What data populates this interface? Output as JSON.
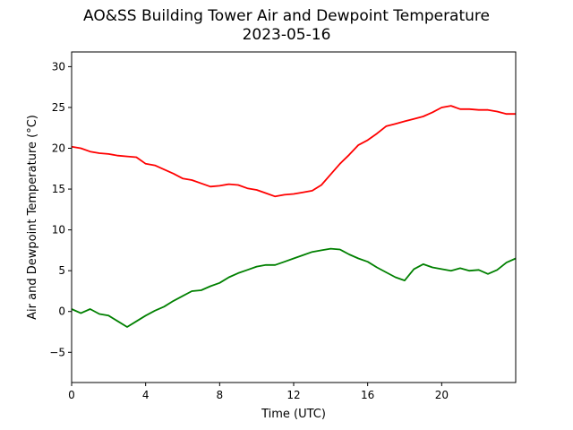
{
  "chart_data": {
    "type": "line",
    "title": "AO&SS Building Tower Air and Dewpoint Temperature",
    "subtitle": "2023-05-16",
    "xlabel": "Time (UTC)",
    "ylabel": "Air and Dewpoint Temperature (°C)",
    "xlim": [
      0,
      24
    ],
    "ylim": [
      -8.7,
      31.8
    ],
    "x_ticks": [
      0,
      4,
      8,
      12,
      16,
      20
    ],
    "y_ticks": [
      -5,
      0,
      5,
      10,
      15,
      20,
      25,
      30
    ],
    "grid": false,
    "legend": "none",
    "series": [
      {
        "color": "#ff0000",
        "x": [
          0,
          0.5,
          1,
          1.5,
          2,
          2.5,
          3,
          3.5,
          4,
          4.5,
          5,
          5.5,
          6,
          6.5,
          7,
          7.5,
          8,
          8.5,
          9,
          9.5,
          10,
          10.5,
          11,
          11.5,
          12,
          12.5,
          13,
          13.5,
          14,
          14.5,
          15,
          15.5,
          16,
          16.5,
          17,
          17.5,
          18,
          18.5,
          19,
          19.5,
          20,
          20.5,
          21,
          21.5,
          22,
          22.5,
          23,
          23.5,
          24
        ],
        "y": [
          20.2,
          20.0,
          19.6,
          19.4,
          19.3,
          19.1,
          19.0,
          18.9,
          18.1,
          17.9,
          17.4,
          16.9,
          16.3,
          16.1,
          15.7,
          15.3,
          15.4,
          15.6,
          15.5,
          15.1,
          14.9,
          14.5,
          14.1,
          14.3,
          14.4,
          14.6,
          14.8,
          15.5,
          16.8,
          18.1,
          19.2,
          20.4,
          21.0,
          21.8,
          22.7,
          23.0,
          23.3,
          23.6,
          23.9,
          24.4,
          25.0,
          25.2,
          24.8,
          24.8,
          24.7,
          24.7,
          24.5,
          24.2,
          24.2
        ]
      },
      {
        "color": "#008000",
        "x": [
          0,
          0.5,
          1,
          1.5,
          2,
          2.5,
          3,
          3.5,
          4,
          4.5,
          5,
          5.5,
          6,
          6.5,
          7,
          7.5,
          8,
          8.5,
          9,
          9.5,
          10,
          10.5,
          11,
          11.5,
          12,
          12.5,
          13,
          13.5,
          14,
          14.5,
          15,
          15.5,
          16,
          16.5,
          17,
          17.5,
          18,
          18.5,
          19,
          19.5,
          20,
          20.5,
          21,
          21.5,
          22,
          22.5,
          23,
          23.5,
          24
        ],
        "y": [
          0.3,
          -0.2,
          0.3,
          -0.3,
          -0.5,
          -1.2,
          -1.9,
          -1.2,
          -0.5,
          0.1,
          0.6,
          1.3,
          1.9,
          2.5,
          2.6,
          3.1,
          3.5,
          4.2,
          4.7,
          5.1,
          5.5,
          5.7,
          5.7,
          6.1,
          6.5,
          6.9,
          7.3,
          7.5,
          7.7,
          7.6,
          7.0,
          6.5,
          6.1,
          5.4,
          4.8,
          4.2,
          3.8,
          5.2,
          5.8,
          5.4,
          5.2,
          5.0,
          5.3,
          5.0,
          5.1,
          4.6,
          5.1,
          6.0,
          6.5
        ]
      }
    ]
  }
}
